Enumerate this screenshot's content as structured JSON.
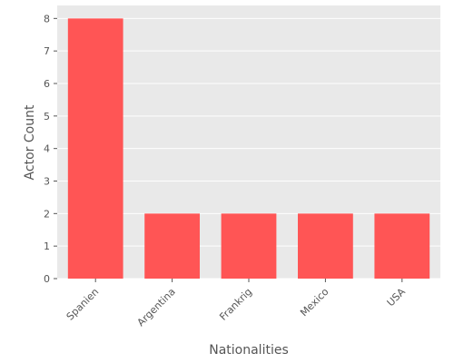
{
  "chart_data": {
    "type": "bar",
    "categories": [
      "Spanien",
      "Argentina",
      "Frankrig",
      "Mexico",
      "USA"
    ],
    "values": [
      8,
      2,
      2,
      2,
      2
    ],
    "xlabel": "Nationalities",
    "ylabel": "Actor Count",
    "ylim": [
      0,
      8.4
    ],
    "yticks": [
      0,
      1,
      2,
      3,
      4,
      5,
      6,
      7,
      8
    ],
    "grid": true,
    "bar_color": "#ff5555",
    "background_color": "#e9e9e9",
    "grid_color": "#ffffff"
  }
}
